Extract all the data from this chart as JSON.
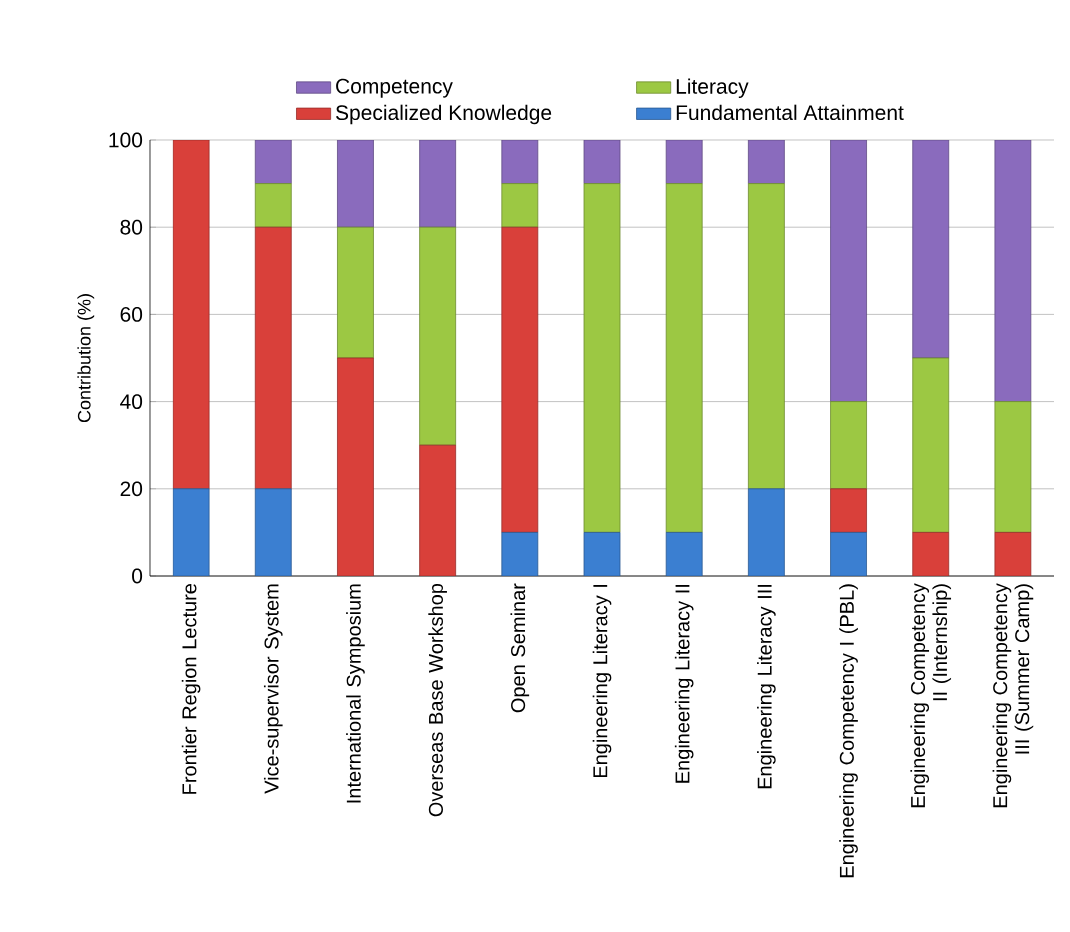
{
  "chart_data": {
    "type": "bar",
    "stacked": true,
    "ylabel": "Contribution (%)",
    "categories": [
      "Frontier Region Lecture",
      "Vice-supervisor System",
      "International Symposium",
      "Overseas Base Workshop",
      "Open Seminar",
      "Engineering Literacy I",
      "Engineering Literacy II",
      "Engineering Literacy III",
      "Engineering Competency I (PBL)",
      "Engineering Competency II (Internship)",
      "Engineering Competency III (Summer Camp)"
    ],
    "series": [
      {
        "name": "Fundamental Attainment",
        "color": "#3b7fd1",
        "values": [
          20,
          20,
          0,
          0,
          10,
          10,
          10,
          20,
          10,
          0,
          0
        ]
      },
      {
        "name": "Specialized Knowledge",
        "color": "#d9403a",
        "values": [
          80,
          60,
          50,
          30,
          70,
          0,
          0,
          0,
          10,
          10,
          10
        ]
      },
      {
        "name": "Literacy",
        "color": "#9cc843",
        "values": [
          0,
          10,
          30,
          50,
          10,
          80,
          80,
          70,
          20,
          40,
          30
        ]
      },
      {
        "name": "Competency",
        "color": "#8a6bbd",
        "values": [
          0,
          10,
          20,
          20,
          10,
          10,
          10,
          10,
          60,
          50,
          60
        ]
      }
    ],
    "ylim": [
      0,
      100
    ],
    "yticks": [
      0,
      20,
      40,
      60,
      80,
      100
    ],
    "grid": "y",
    "legend": "top"
  }
}
